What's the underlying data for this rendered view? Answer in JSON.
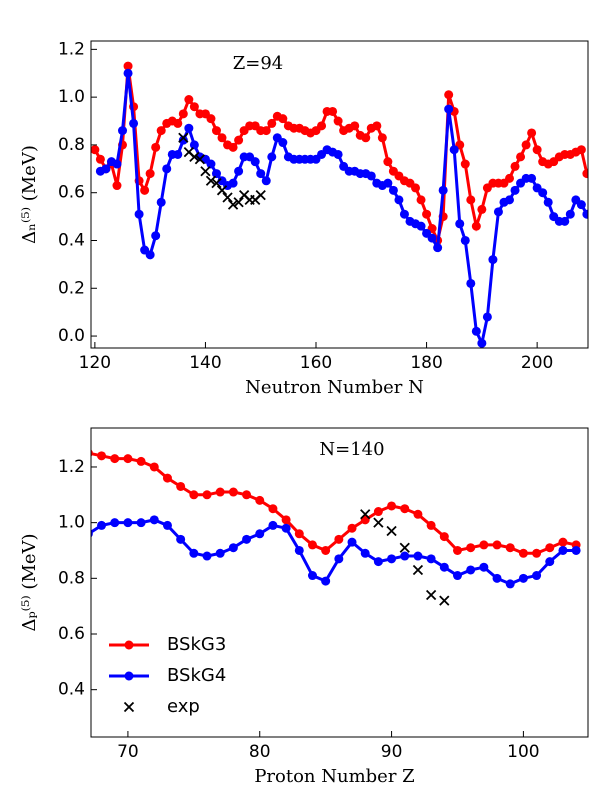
{
  "chart_data": [
    {
      "type": "line",
      "annotation": "Z=94",
      "xlabel": "Neutron Number N",
      "ylabel": "Δₙ⁽⁵⁾ (MeV)",
      "xlim": [
        119.3,
        209.2
      ],
      "ylim": [
        -0.05,
        1.235
      ],
      "xticks": [
        120,
        140,
        160,
        180,
        200
      ],
      "yticks": [
        {
          "value": 0,
          "label": "0.0"
        },
        0.2,
        0.4,
        0.6,
        0.8,
        {
          "value": 1,
          "label": "1.0"
        },
        1.2
      ],
      "series": [
        {
          "color": "#ff0000",
          "marker": "circle",
          "x": [
            120,
            121,
            122,
            123,
            124,
            125,
            126,
            127,
            128,
            129,
            130,
            131,
            132,
            133,
            134,
            135,
            136,
            137,
            138,
            139,
            140,
            141,
            142,
            143,
            144,
            145,
            146,
            147,
            148,
            149,
            150,
            151,
            152,
            153,
            154,
            155,
            156,
            157,
            158,
            159,
            160,
            161,
            162,
            163,
            164,
            165,
            166,
            167,
            168,
            169,
            170,
            171,
            172,
            173,
            174,
            175,
            176,
            177,
            178,
            179,
            180,
            181,
            182,
            183,
            184,
            185,
            186,
            187,
            188,
            189,
            190,
            191,
            192,
            193,
            194,
            195,
            196,
            197,
            198,
            199,
            200,
            201,
            202,
            203,
            204,
            205,
            206,
            207,
            208,
            209
          ],
          "values": [
            0.78,
            0.74,
            0.7,
            0.72,
            0.63,
            0.8,
            1.13,
            0.96,
            0.65,
            0.61,
            0.68,
            0.79,
            0.86,
            0.89,
            0.9,
            0.89,
            0.93,
            0.99,
            0.96,
            0.93,
            0.93,
            0.91,
            0.86,
            0.83,
            0.8,
            0.79,
            0.82,
            0.86,
            0.88,
            0.88,
            0.86,
            0.86,
            0.89,
            0.92,
            0.91,
            0.88,
            0.87,
            0.87,
            0.86,
            0.85,
            0.86,
            0.88,
            0.94,
            0.94,
            0.9,
            0.86,
            0.87,
            0.88,
            0.84,
            0.83,
            0.87,
            0.88,
            0.83,
            0.73,
            0.69,
            0.67,
            0.65,
            0.64,
            0.62,
            0.57,
            0.51,
            0.45,
            0.4,
            0.5,
            1.01,
            0.94,
            0.8,
            0.72,
            0.57,
            0.46,
            0.53,
            0.62,
            0.64,
            0.64,
            0.64,
            0.66,
            0.71,
            0.75,
            0.8,
            0.85,
            0.78,
            0.73,
            0.72,
            0.73,
            0.75,
            0.76,
            0.76,
            0.77,
            0.78,
            0.68
          ]
        },
        {
          "color": "#0000ff",
          "marker": "circle",
          "x": [
            121,
            122,
            123,
            124,
            125,
            126,
            127,
            128,
            129,
            130,
            131,
            132,
            133,
            134,
            135,
            136,
            137,
            138,
            139,
            140,
            141,
            142,
            143,
            144,
            145,
            146,
            147,
            148,
            149,
            150,
            151,
            152,
            153,
            154,
            155,
            156,
            157,
            158,
            159,
            160,
            161,
            162,
            163,
            164,
            165,
            166,
            167,
            168,
            169,
            170,
            171,
            172,
            173,
            174,
            175,
            176,
            177,
            178,
            179,
            180,
            181,
            182,
            183,
            184,
            185,
            186,
            187,
            188,
            189,
            190,
            191,
            192,
            193,
            194,
            195,
            196,
            197,
            198,
            199,
            200,
            201,
            202,
            203,
            204,
            205,
            206,
            207,
            208,
            209
          ],
          "values": [
            0.69,
            0.7,
            0.73,
            0.72,
            0.86,
            1.1,
            0.89,
            0.51,
            0.36,
            0.34,
            0.42,
            0.56,
            0.7,
            0.76,
            0.76,
            0.82,
            0.87,
            0.8,
            0.75,
            0.74,
            0.72,
            0.68,
            0.65,
            0.63,
            0.64,
            0.69,
            0.75,
            0.75,
            0.73,
            0.68,
            0.65,
            0.75,
            0.83,
            0.81,
            0.75,
            0.74,
            0.74,
            0.74,
            0.74,
            0.74,
            0.76,
            0.78,
            0.77,
            0.76,
            0.71,
            0.69,
            0.69,
            0.68,
            0.68,
            0.67,
            0.64,
            0.63,
            0.64,
            0.61,
            0.57,
            0.51,
            0.48,
            0.47,
            0.46,
            0.43,
            0.41,
            0.37,
            0.61,
            0.95,
            0.78,
            0.47,
            0.4,
            0.22,
            0.02,
            -0.03,
            0.08,
            0.32,
            0.52,
            0.56,
            0.57,
            0.61,
            0.64,
            0.66,
            0.66,
            0.62,
            0.6,
            0.56,
            0.5,
            0.48,
            0.48,
            0.51,
            0.57,
            0.55,
            0.51
          ]
        },
        {
          "color": "#000000",
          "marker": "x",
          "x": [
            136,
            137,
            138,
            139,
            140,
            141,
            142,
            143,
            144,
            145,
            146,
            147,
            148,
            149,
            150
          ],
          "values": [
            0.83,
            0.77,
            0.75,
            0.74,
            0.69,
            0.65,
            0.64,
            0.61,
            0.58,
            0.55,
            0.56,
            0.59,
            0.57,
            0.57,
            0.59
          ]
        }
      ]
    },
    {
      "type": "line",
      "annotation": "N=140",
      "xlabel": "Proton Number Z",
      "ylabel": "Δₚ⁽⁵⁾ (MeV)",
      "xlim": [
        67.2,
        104.9
      ],
      "ylim": [
        0.23,
        1.34
      ],
      "xticks": [
        70,
        80,
        90,
        100
      ],
      "yticks": [
        0.4,
        0.6,
        0.8,
        {
          "value": 1,
          "label": "1.0"
        },
        1.2
      ],
      "legend": "lower left",
      "series": [
        {
          "name": "BSkG3",
          "color": "#ff0000",
          "marker": "circle",
          "x": [
            67,
            68,
            69,
            70,
            71,
            72,
            73,
            74,
            75,
            76,
            77,
            78,
            79,
            80,
            81,
            82,
            83,
            84,
            85,
            86,
            87,
            88,
            89,
            90,
            91,
            92,
            93,
            94,
            95,
            96,
            97,
            98,
            99,
            100,
            101,
            102,
            103,
            104
          ],
          "values": [
            1.25,
            1.24,
            1.23,
            1.23,
            1.22,
            1.2,
            1.16,
            1.13,
            1.1,
            1.1,
            1.11,
            1.11,
            1.1,
            1.08,
            1.05,
            1.01,
            0.96,
            0.92,
            0.9,
            0.94,
            0.98,
            1.01,
            1.04,
            1.06,
            1.05,
            1.03,
            0.99,
            0.95,
            0.9,
            0.91,
            0.92,
            0.92,
            0.91,
            0.89,
            0.89,
            0.91,
            0.93,
            0.92
          ]
        },
        {
          "name": "BSkG4",
          "color": "#0000ff",
          "marker": "circle",
          "x": [
            67,
            68,
            69,
            70,
            71,
            72,
            73,
            74,
            75,
            76,
            77,
            78,
            79,
            80,
            81,
            82,
            83,
            84,
            85,
            86,
            87,
            88,
            89,
            90,
            91,
            92,
            93,
            94,
            95,
            96,
            97,
            98,
            99,
            100,
            101,
            102,
            103,
            104
          ],
          "values": [
            0.96,
            0.99,
            1.0,
            1.0,
            1.0,
            1.01,
            0.99,
            0.94,
            0.89,
            0.88,
            0.89,
            0.91,
            0.94,
            0.96,
            0.99,
            0.98,
            0.9,
            0.81,
            0.79,
            0.87,
            0.93,
            0.89,
            0.86,
            0.87,
            0.88,
            0.88,
            0.87,
            0.84,
            0.81,
            0.83,
            0.84,
            0.8,
            0.78,
            0.8,
            0.81,
            0.86,
            0.9,
            0.9
          ]
        },
        {
          "name": "exp",
          "color": "#000000",
          "marker": "x",
          "x": [
            88,
            89,
            90,
            91,
            92,
            93,
            94
          ],
          "values": [
            1.03,
            1.0,
            0.97,
            0.91,
            0.83,
            0.74,
            0.72
          ]
        }
      ]
    }
  ]
}
